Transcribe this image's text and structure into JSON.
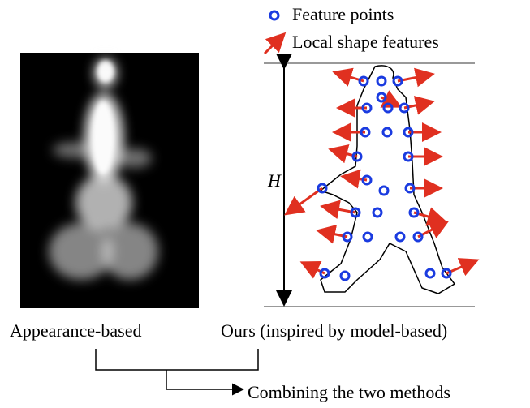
{
  "legend": {
    "feature_points": "Feature points",
    "local_shape_features": "Local shape features"
  },
  "height_label": "H",
  "captions": {
    "appearance": "Appearance-based",
    "ours": "Ours (inspired by model-based)"
  },
  "combine_label": "Combining the two methods"
}
